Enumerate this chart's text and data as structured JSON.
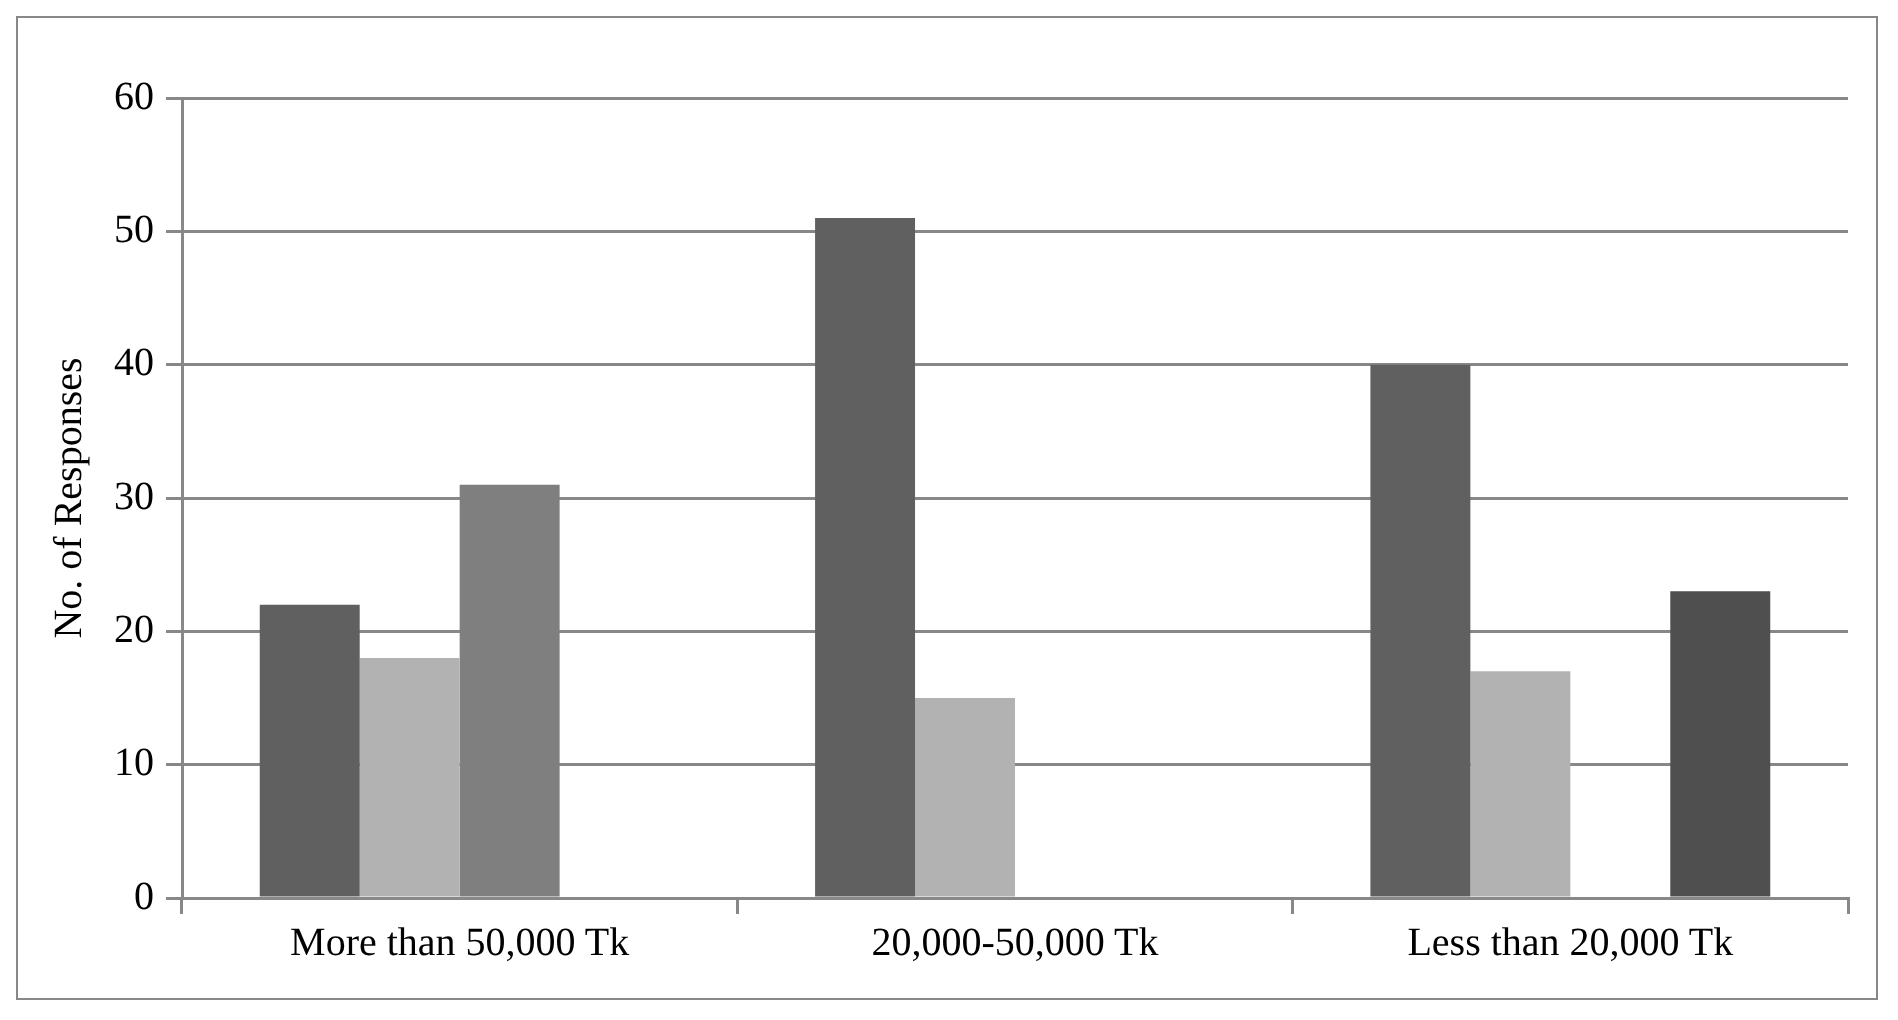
{
  "chart_data": {
    "type": "bar",
    "ylabel": "No. of Responses",
    "categories": [
      "More than 50,000 Tk",
      "20,000-50,000 Tk",
      "Less than 20,000 Tk"
    ],
    "series": [
      {
        "color": "#606060",
        "values": [
          22,
          51,
          40
        ]
      },
      {
        "color": "#b2b2b2",
        "values": [
          18,
          15,
          17
        ]
      },
      {
        "color": "#7f7f7f",
        "values": [
          31,
          null,
          null
        ]
      },
      {
        "color": "#4f4f4f",
        "values": [
          null,
          null,
          23
        ]
      }
    ],
    "ylim": [
      0,
      60
    ],
    "yticks": [
      0,
      10,
      20,
      30,
      40,
      50,
      60
    ],
    "grid": "y",
    "legend": false
  }
}
